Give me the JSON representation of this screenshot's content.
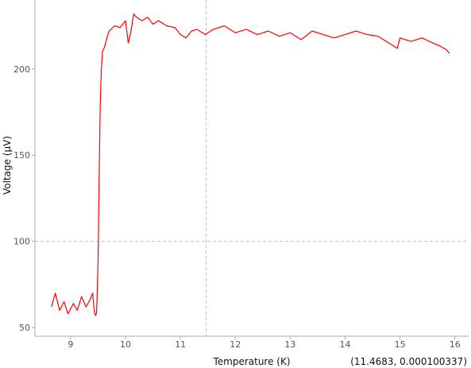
{
  "colors": {
    "series": "#ff0000",
    "axis": "#aaaaaa",
    "crosshair": "#bbbbbb",
    "text": "#111111"
  },
  "cursor": {
    "x": 11.4683,
    "y_display": 100,
    "readout": "(11.4683, 0.000100337)"
  },
  "chart_data": {
    "type": "line",
    "title": "",
    "xlabel": "Temperature (K)",
    "ylabel": "Voltage (µV)",
    "xlim": [
      8.35,
      16.25
    ],
    "ylim": [
      45,
      240
    ],
    "xticks": [
      9,
      10,
      11,
      12,
      13,
      14,
      15,
      16
    ],
    "yticks": [
      50,
      100,
      150,
      200
    ],
    "grid": false,
    "legend": "none",
    "series": [
      {
        "x": [
          8.65,
          8.72,
          8.8,
          8.88,
          8.95,
          9.05,
          9.12,
          9.2,
          9.28,
          9.35,
          9.4,
          9.43,
          9.45,
          9.47,
          9.48,
          9.5,
          9.52,
          9.54,
          9.56,
          9.58,
          9.62,
          9.66,
          9.7,
          9.8,
          9.9,
          10.0,
          10.05,
          10.1,
          10.15,
          10.2,
          10.3,
          10.4,
          10.5,
          10.6,
          10.75,
          10.9,
          11.0,
          11.1,
          11.2,
          11.3,
          11.45,
          11.6,
          11.8,
          12.0,
          12.2,
          12.4,
          12.6,
          12.8,
          13.0,
          13.2,
          13.4,
          13.6,
          13.8,
          14.0,
          14.2,
          14.4,
          14.6,
          14.8,
          14.95,
          15.0,
          15.2,
          15.4,
          15.6,
          15.75,
          15.85,
          15.9
        ],
        "values": [
          62,
          70,
          60,
          65,
          58,
          64,
          60,
          68,
          62,
          66,
          70,
          60,
          57,
          58,
          65,
          90,
          140,
          180,
          200,
          210,
          213,
          218,
          222,
          225,
          224,
          228,
          215,
          222,
          232,
          230,
          228,
          230,
          226,
          228,
          225,
          224,
          220,
          218,
          222,
          223,
          220,
          223,
          225,
          221,
          223,
          220,
          222,
          219,
          221,
          217,
          222,
          220,
          218,
          220,
          222,
          220,
          219,
          215,
          212,
          218,
          216,
          218,
          215,
          213,
          211,
          209
        ]
      }
    ]
  }
}
